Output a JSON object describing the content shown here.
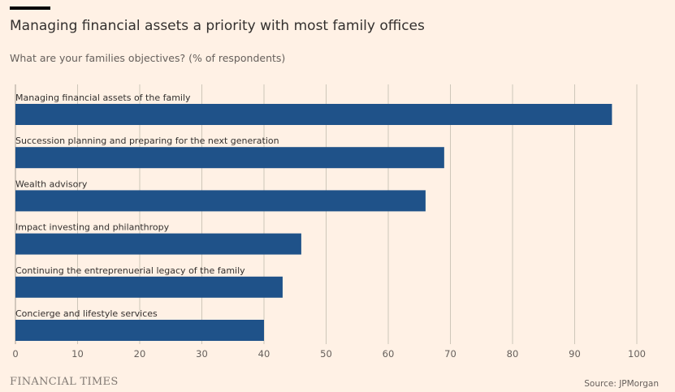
{
  "header": {
    "title": "Managing financial assets a priority with most family offices",
    "subtitle": "What are your families objectives? (% of respondents)"
  },
  "footer": {
    "logo": "FINANCIAL TIMES",
    "source": "Source: JPMorgan"
  },
  "colors": {
    "background": "#fff1e5",
    "bar": "#1f5289",
    "grid": "#cec6b9",
    "text": "#33302e"
  },
  "chart_data": {
    "type": "bar",
    "orientation": "horizontal",
    "title": "Managing financial assets a priority with most family offices",
    "subtitle": "What are your families objectives? (% of respondents)",
    "xlabel": "",
    "ylabel": "",
    "xlim": [
      0,
      100
    ],
    "ticks": [
      0,
      10,
      20,
      30,
      40,
      50,
      60,
      70,
      80,
      90,
      100
    ],
    "tick_labels": [
      "0",
      "10",
      "20",
      "30",
      "40",
      "50",
      "60",
      "70",
      "80",
      "90",
      "100"
    ],
    "grid": true,
    "categories": [
      "Managing financial assets of the family",
      "Succession planning and preparing for the next generation",
      "Wealth advisory",
      "Impact investing and philanthropy",
      "Continuing the entreprenuerial legacy of the family",
      "Concierge and lifestyle services"
    ],
    "values": [
      96,
      69,
      66,
      46,
      43,
      40
    ]
  }
}
